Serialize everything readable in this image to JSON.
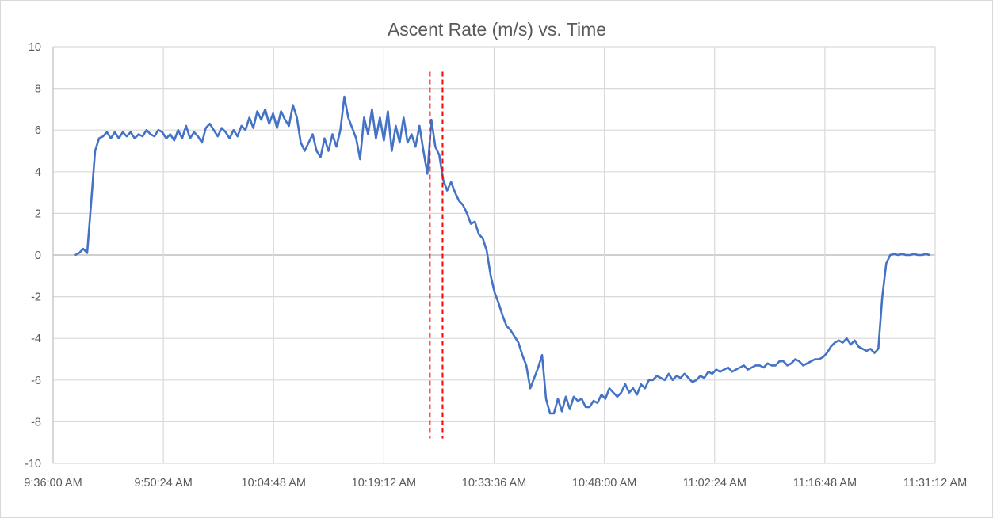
{
  "chart_data": {
    "type": "line",
    "title": "Ascent Rate (m/s) vs. Time",
    "xlabel": "",
    "ylabel": "",
    "ylim": [
      -10,
      10
    ],
    "yticks": [
      10,
      8,
      6,
      4,
      2,
      0,
      -2,
      -4,
      -6,
      -8,
      -10
    ],
    "xlim_seconds_since_start": [
      0,
      6912
    ],
    "xtick_step_seconds": 864,
    "xtick_labels": [
      "9:36:00 AM",
      "9:50:24 AM",
      "10:04:48 AM",
      "10:19:12 AM",
      "10:33:36 AM",
      "10:48:00 AM",
      "11:02:24 AM",
      "11:16:48 AM",
      "11:31:12 AM"
    ],
    "grid": true,
    "legend": "none",
    "series": [
      {
        "name": "Ascent Rate (m/s)",
        "color": "#4472c4",
        "t_start_seconds": 174,
        "t_step_seconds": 31,
        "values": [
          0,
          0.1,
          0.3,
          0.1,
          2.5,
          5.0,
          5.6,
          5.7,
          5.9,
          5.6,
          5.9,
          5.6,
          5.9,
          5.7,
          5.9,
          5.6,
          5.8,
          5.7,
          6.0,
          5.8,
          5.7,
          6.0,
          5.9,
          5.6,
          5.8,
          5.5,
          6.0,
          5.6,
          6.2,
          5.6,
          5.9,
          5.7,
          5.4,
          6.1,
          6.3,
          6.0,
          5.7,
          6.1,
          5.9,
          5.6,
          6.0,
          5.7,
          6.2,
          6.0,
          6.6,
          6.1,
          6.9,
          6.5,
          7.0,
          6.3,
          6.8,
          6.1,
          6.9,
          6.5,
          6.2,
          7.2,
          6.6,
          5.4,
          5.0,
          5.4,
          5.8,
          5.0,
          4.7,
          5.6,
          5.0,
          5.8,
          5.2,
          6.0,
          7.6,
          6.6,
          6.1,
          5.6,
          4.6,
          6.6,
          5.8,
          7.0,
          5.6,
          6.6,
          5.5,
          6.9,
          5.0,
          6.2,
          5.4,
          6.6,
          5.4,
          5.8,
          5.2,
          6.2,
          5.0,
          3.9,
          6.5,
          5.2,
          4.8,
          3.6,
          3.1,
          3.5,
          3.0,
          2.6,
          2.4,
          2.0,
          1.5,
          1.6,
          1.0,
          0.8,
          0.2,
          -1.0,
          -1.8,
          -2.3,
          -2.9,
          -3.4,
          -3.6,
          -3.9,
          -4.2,
          -4.8,
          -5.3,
          -6.4,
          -5.9,
          -5.4,
          -4.8,
          -6.9,
          -7.6,
          -7.6,
          -6.9,
          -7.5,
          -6.8,
          -7.4,
          -6.8,
          -7.0,
          -6.9,
          -7.3,
          -7.3,
          -7.0,
          -7.1,
          -6.7,
          -6.9,
          -6.4,
          -6.6,
          -6.8,
          -6.6,
          -6.2,
          -6.6,
          -6.4,
          -6.7,
          -6.2,
          -6.4,
          -6.0,
          -6.0,
          -5.8,
          -5.9,
          -6.0,
          -5.7,
          -6.0,
          -5.8,
          -5.9,
          -5.7,
          -5.9,
          -6.1,
          -6.0,
          -5.8,
          -5.9,
          -5.6,
          -5.7,
          -5.5,
          -5.6,
          -5.5,
          -5.4,
          -5.6,
          -5.5,
          -5.4,
          -5.3,
          -5.5,
          -5.4,
          -5.3,
          -5.3,
          -5.4,
          -5.2,
          -5.3,
          -5.3,
          -5.1,
          -5.1,
          -5.3,
          -5.2,
          -5.0,
          -5.1,
          -5.3,
          -5.2,
          -5.1,
          -5.0,
          -5.0,
          -4.9,
          -4.7,
          -4.4,
          -4.2,
          -4.1,
          -4.2,
          -4.0,
          -4.3,
          -4.1,
          -4.4,
          -4.5,
          -4.6,
          -4.5,
          -4.7,
          -4.5,
          -2.0,
          -0.4,
          0.0,
          0.05,
          0.0,
          0.05,
          0.0,
          0.0,
          0.05,
          0.0,
          0.0,
          0.05,
          0.0
        ]
      }
    ],
    "markers": [
      {
        "name": "marker-1",
        "time_seconds": 2952,
        "y_range": [
          -8.8,
          8.8
        ],
        "color": "#ff0000",
        "style": "dashed"
      },
      {
        "name": "marker-2",
        "time_seconds": 3052,
        "y_range": [
          -8.8,
          8.8
        ],
        "color": "#ff0000",
        "style": "dashed"
      }
    ]
  }
}
